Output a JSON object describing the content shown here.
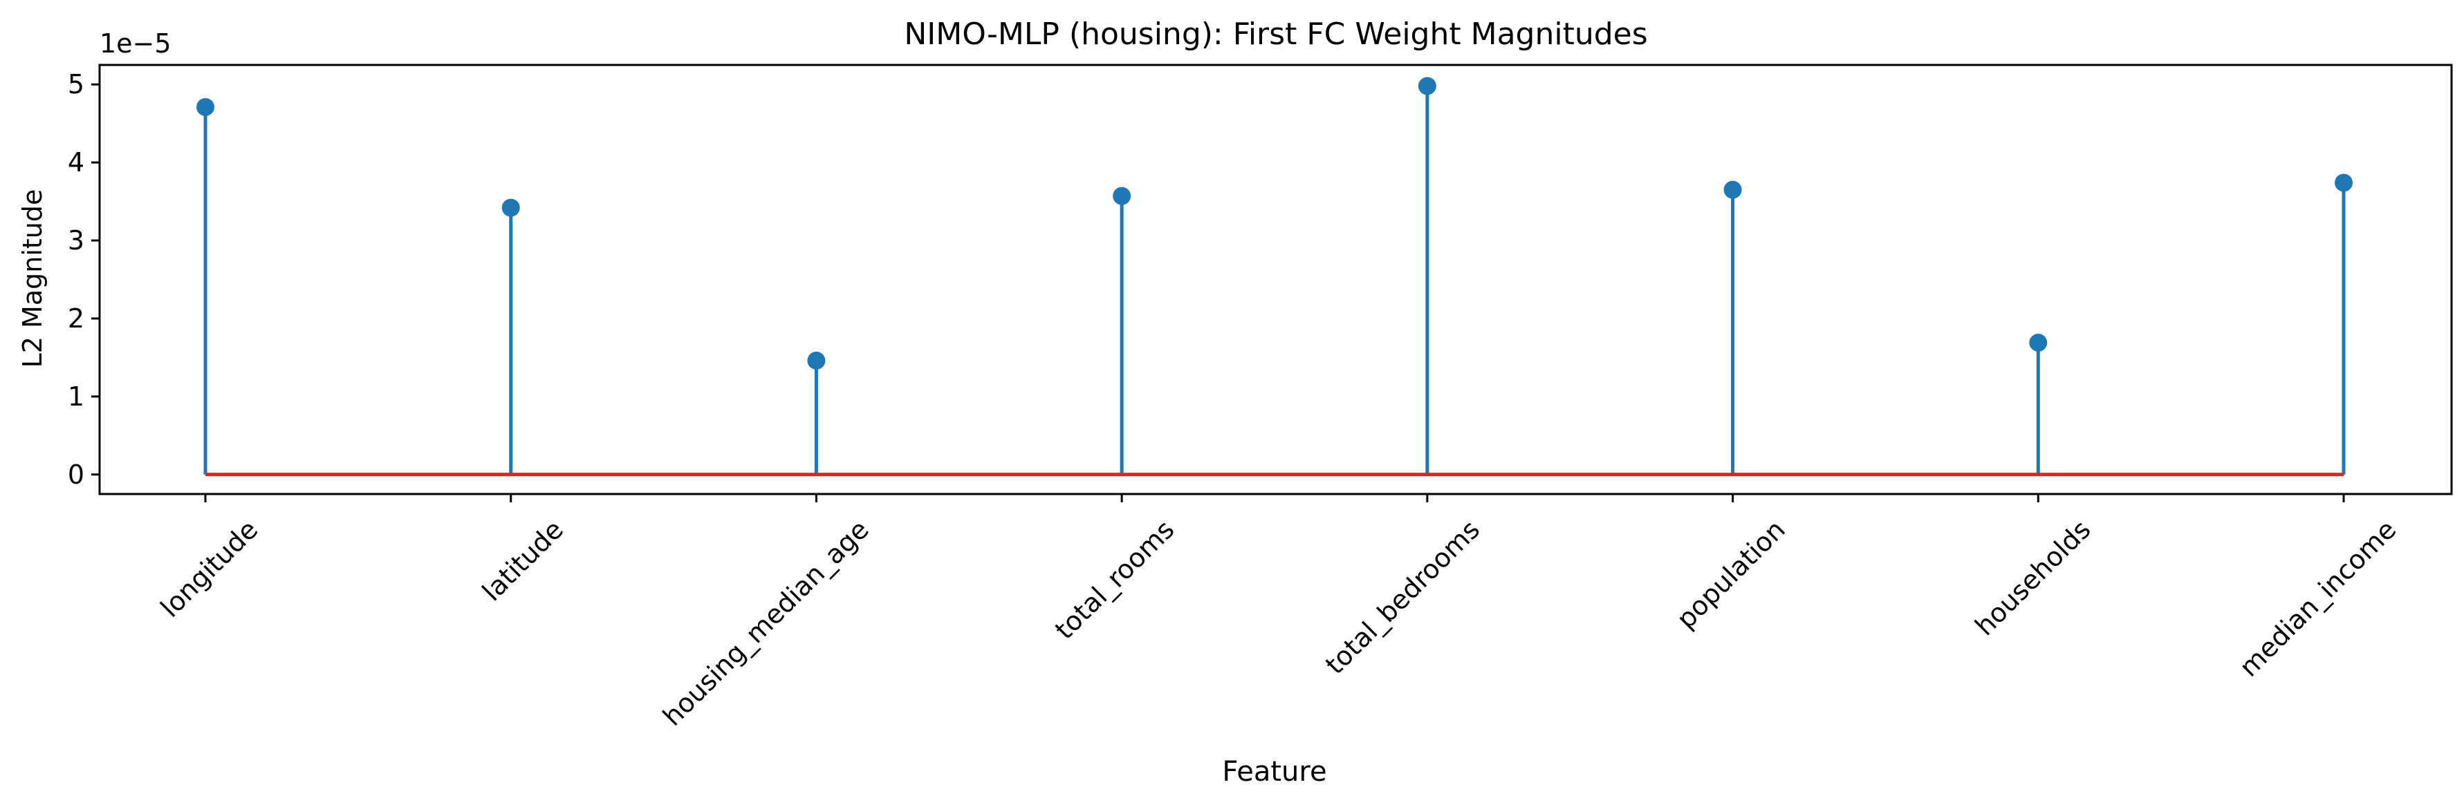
{
  "chart_data": {
    "type": "stem",
    "title": "NIMO-MLP (housing): First FC Weight Magnitudes",
    "xlabel": "Feature",
    "ylabel": "L2 Magnitude",
    "y_offset_label": "1e−5",
    "categories": [
      "longitude",
      "latitude",
      "housing_median_age",
      "total_rooms",
      "total_bedrooms",
      "population",
      "households",
      "median_income"
    ],
    "values": [
      4.71e-05,
      3.42e-05,
      1.46e-05,
      3.57e-05,
      4.98e-05,
      3.65e-05,
      1.69e-05,
      3.74e-05
    ],
    "ylim": [
      -2.5e-06,
      5.25e-05
    ],
    "yticks": [
      0,
      1e-05,
      2e-05,
      3e-05,
      4e-05,
      5e-05
    ],
    "ytick_labels": [
      "0",
      "1",
      "2",
      "3",
      "4",
      "5"
    ],
    "baseline": 0,
    "grid": false,
    "legend": "none",
    "colors": {
      "stem": "#1f77b4",
      "marker": "#1f77b4",
      "baseline": "#d62728",
      "axes": "#000000"
    }
  }
}
